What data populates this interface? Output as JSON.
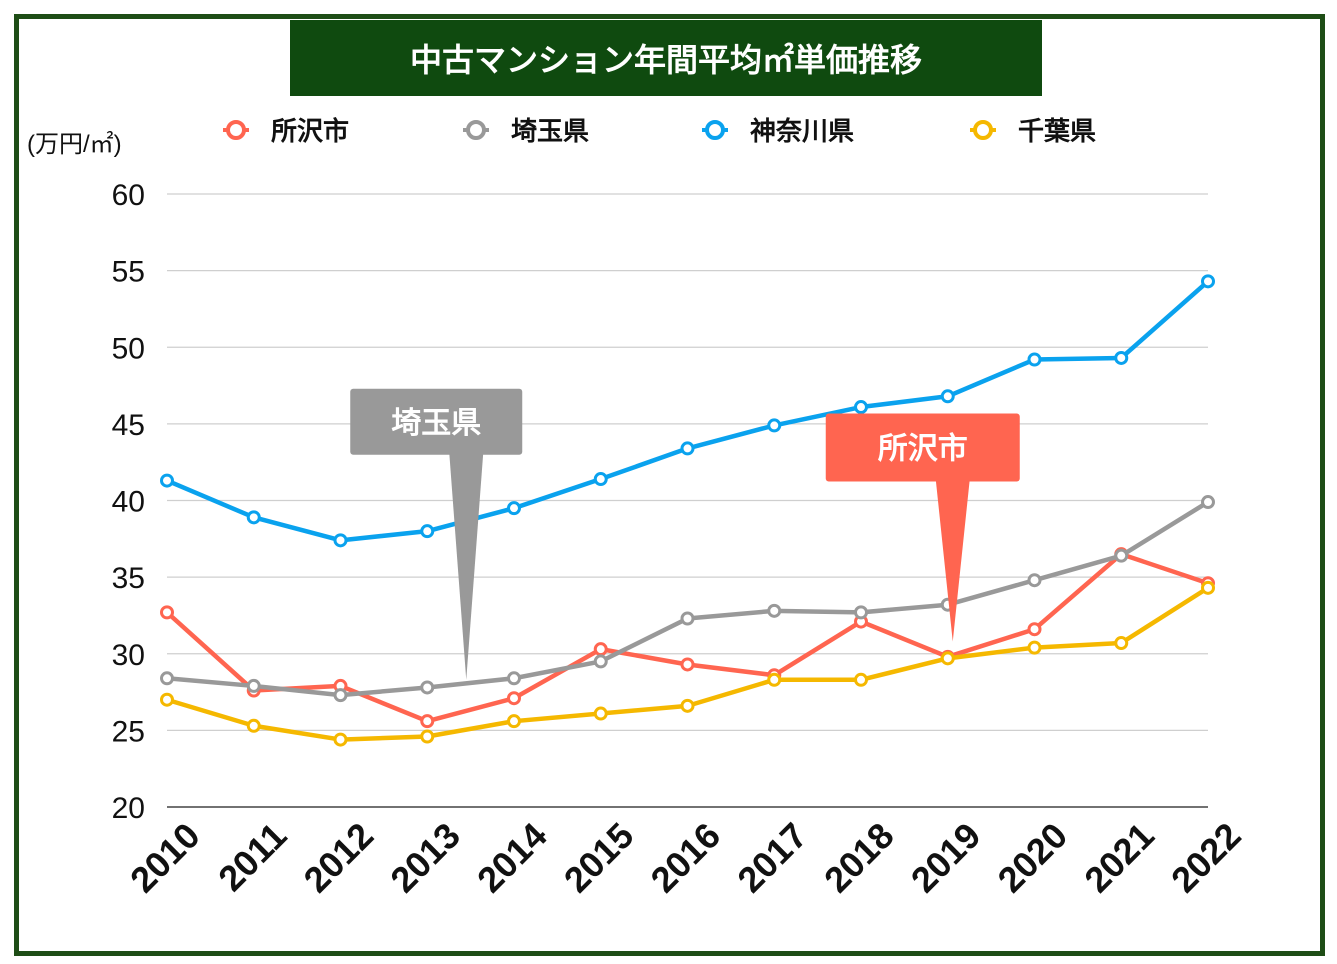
{
  "chart_data": {
    "type": "line",
    "title": "中古マンション年間平均㎡単価推移",
    "ylabel": "(万円/㎡)",
    "xlabel": "",
    "ylim": [
      20,
      60
    ],
    "yticks": [
      20,
      25,
      30,
      35,
      40,
      45,
      50,
      55,
      60
    ],
    "grid": true,
    "legend_position": "top",
    "categories": [
      "2010",
      "2011",
      "2012",
      "2013",
      "2014",
      "2015",
      "2016",
      "2017",
      "2018",
      "2019",
      "2020",
      "2021",
      "2022"
    ],
    "series": [
      {
        "name": "所沢市",
        "color": "#ff6550",
        "values": [
          32.7,
          27.6,
          27.9,
          25.6,
          27.1,
          30.3,
          29.3,
          28.6,
          32.1,
          29.8,
          31.6,
          36.5,
          34.6
        ]
      },
      {
        "name": "埼玉県",
        "color": "#999999",
        "values": [
          28.4,
          27.9,
          27.3,
          27.8,
          28.4,
          29.5,
          32.3,
          32.8,
          32.7,
          33.2,
          34.8,
          36.4,
          39.9
        ]
      },
      {
        "name": "神奈川県",
        "color": "#0aa2ee",
        "values": [
          41.3,
          38.9,
          37.4,
          38.0,
          39.5,
          41.4,
          43.4,
          44.9,
          46.1,
          46.8,
          49.2,
          49.3,
          54.3
        ]
      },
      {
        "name": "千葉県",
        "color": "#f5b800",
        "values": [
          27.0,
          25.3,
          24.4,
          24.6,
          25.6,
          26.1,
          26.6,
          28.3,
          28.3,
          29.7,
          30.4,
          30.7,
          34.3
        ]
      }
    ],
    "callouts": [
      {
        "label": "埼玉県",
        "color": "#999999",
        "category": "2013",
        "value": 28.3
      },
      {
        "label": "所沢市",
        "color": "#ff6550",
        "category": "2019",
        "value": 30.8
      }
    ]
  }
}
